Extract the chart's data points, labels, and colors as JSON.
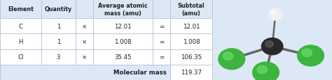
{
  "headers": [
    "Element",
    "Quantity",
    "",
    "Average atomic\nmass (amu)",
    "",
    "Subtotal\n(amu)"
  ],
  "rows": [
    [
      "C",
      "1",
      "×",
      "12.01",
      "=",
      "12.01"
    ],
    [
      "H",
      "1",
      "×",
      "1.008",
      "=",
      "1.008"
    ],
    [
      "Cl",
      "3",
      "×",
      "35.45",
      "=",
      "106.35"
    ]
  ],
  "footer_label": "Molecular mass",
  "footer_value": "119.37",
  "table_bg": "#dce8f5",
  "row_bg": "#ffffff",
  "border_color": "#b0c4d8",
  "text_color": "#222222",
  "fig_width": 4.74,
  "fig_height": 1.16,
  "carbon_color": "#2a2a2a",
  "hydrogen_color": "#f0f0f0",
  "chlorine_color": "#3db53d",
  "bond_color": "#666666"
}
